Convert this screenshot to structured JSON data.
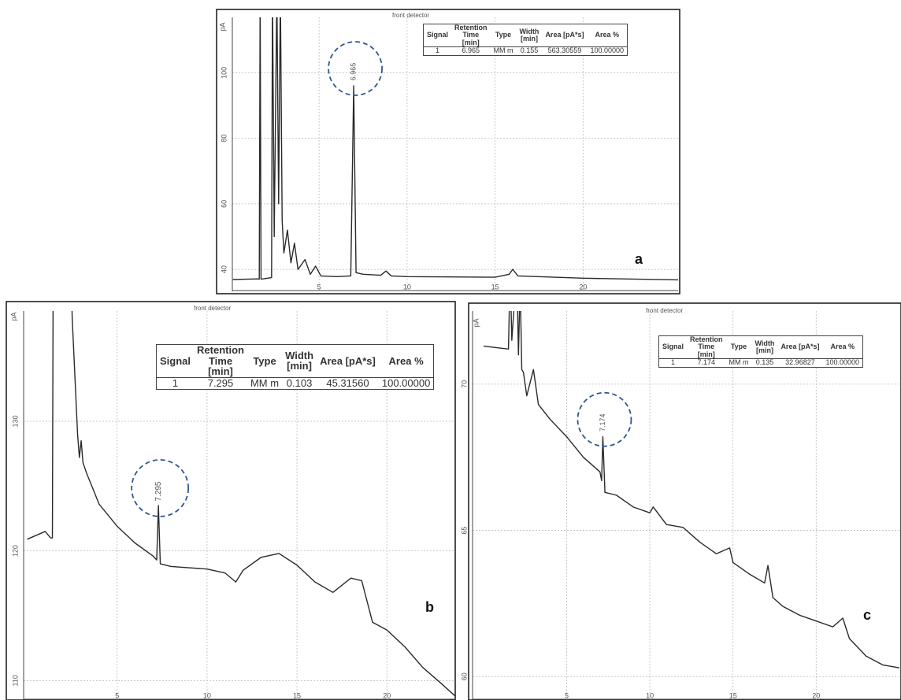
{
  "chart_data": [
    {
      "type": "line",
      "detector_label": "front detector",
      "y_axis_label": "pA",
      "panel_label": "a",
      "peak_label": "6.965",
      "xlim": [
        0.07,
        25.4
      ],
      "ylim": [
        33.3,
        116.9
      ],
      "xticks": [
        5,
        10,
        15,
        20
      ],
      "yticks": [
        40,
        60,
        80,
        100
      ],
      "grid": true,
      "x": [
        0.1,
        1.5,
        1.6,
        1.65,
        1.7,
        2.3,
        2.35,
        2.45,
        2.6,
        2.7,
        2.8,
        2.9,
        3.0,
        3.2,
        3.4,
        3.6,
        3.8,
        4.2,
        4.5,
        4.8,
        5.1,
        6.0,
        6.8,
        6.965,
        7.1,
        7.5,
        8.5,
        8.8,
        9.1,
        10,
        15,
        15.8,
        16.0,
        16.3,
        20,
        25.4
      ],
      "series": [
        {
          "color": "#2a2a2a",
          "values": [
            36.9,
            37.1,
            37,
            125,
            37,
            37.5,
            125,
            50,
            125,
            60,
            125,
            55,
            45,
            52,
            42,
            48,
            40,
            43,
            38.5,
            41,
            38,
            37.8,
            38,
            96,
            39,
            38.5,
            38.2,
            39.5,
            38,
            37.8,
            37.6,
            38.5,
            40,
            38,
            37.3,
            36.8
          ]
        }
      ],
      "table": {
        "header": [
          [
            "Signal"
          ],
          [
            "Retention",
            "Time",
            "[min]"
          ],
          [
            "Type"
          ],
          [
            "Width",
            "[min]"
          ],
          [
            "Area [pA*s]"
          ],
          [
            "Area %"
          ]
        ],
        "rows": [
          [
            "1",
            "6.965",
            "MM m",
            "0.155",
            "563.30559",
            "100.00000"
          ]
        ]
      }
    },
    {
      "type": "line",
      "detector_label": "front detector",
      "y_axis_label": "pA",
      "panel_label": "b",
      "peak_label": "7.295",
      "xlim": [
        -0.2,
        23.8
      ],
      "ylim": [
        108.5,
        138.5
      ],
      "xticks": [
        5,
        10,
        15,
        20
      ],
      "yticks": [
        110,
        120,
        130
      ],
      "grid": true,
      "x": [
        0,
        1.0,
        1.3,
        1.4,
        1.45,
        2.4,
        2.5,
        2.8,
        2.9,
        3.0,
        3.1,
        3.3,
        4,
        5,
        6,
        7,
        7.2,
        7.295,
        7.4,
        8,
        9,
        10,
        11,
        11.6,
        12,
        13,
        14,
        15,
        16,
        17,
        18,
        18.6,
        19.2,
        20,
        21,
        22,
        23,
        23.8
      ],
      "series": [
        {
          "color": "#2a2a2a",
          "values": [
            120.9,
            121.5,
            121.0,
            121.0,
            145,
            145,
            138,
            129,
            127.2,
            128.5,
            126.8,
            126,
            123.6,
            121.9,
            120.6,
            119.6,
            119.3,
            123.5,
            119.0,
            118.8,
            118.7,
            118.6,
            118.3,
            117.6,
            118.5,
            119.5,
            119.8,
            118.9,
            117.6,
            116.8,
            117.9,
            117.7,
            114.5,
            113.9,
            112.6,
            111,
            109.8,
            108.8
          ]
        }
      ],
      "table": {
        "header": [
          [
            "Signal"
          ],
          [
            "Retention",
            "Time",
            "[min]"
          ],
          [
            "Type"
          ],
          [
            "Width",
            "[min]"
          ],
          [
            "Area [pA*s]"
          ],
          [
            "Area %"
          ]
        ],
        "rows": [
          [
            "1",
            "7.295",
            "MM m",
            "0.103",
            "45.31560",
            "100.00000"
          ]
        ]
      }
    },
    {
      "type": "line",
      "detector_label": "front detector",
      "y_axis_label": "pA",
      "panel_label": "c",
      "peak_label": "7.174",
      "xlim": [
        -0.66,
        25.1
      ],
      "ylim": [
        59.2,
        72.5
      ],
      "xticks": [
        5,
        10,
        15,
        20
      ],
      "yticks": [
        60,
        65,
        70
      ],
      "grid": true,
      "x": [
        0,
        1.5,
        1.6,
        1.7,
        2.0,
        2.1,
        2.2,
        2.3,
        2.4,
        2.6,
        3.0,
        3.3,
        4,
        5,
        6,
        7,
        7.1,
        7.174,
        7.3,
        8,
        9,
        10,
        10.2,
        11,
        12,
        13,
        14,
        14.8,
        15,
        16,
        16.9,
        17.1,
        17.4,
        18,
        19,
        20,
        21,
        21.6,
        22,
        23,
        24,
        25
      ],
      "series": [
        {
          "color": "#2a2a2a",
          "values": [
            71.3,
            71.2,
            74,
            71.5,
            74,
            71,
            73.5,
            70.5,
            70.4,
            69.6,
            70.5,
            69.3,
            68.8,
            68.2,
            67.5,
            67.0,
            66.7,
            68.2,
            66.3,
            66.2,
            65.8,
            65.6,
            65.8,
            65.2,
            65.1,
            64.6,
            64.2,
            64.4,
            63.9,
            63.5,
            63.2,
            63.8,
            62.7,
            62.4,
            62.1,
            61.9,
            61.7,
            62.0,
            61.3,
            60.7,
            60.4,
            60.3
          ]
        }
      ],
      "table": {
        "header": [
          [
            "Signal"
          ],
          [
            "Retention",
            "Time",
            "[min]"
          ],
          [
            "Type"
          ],
          [
            "Width",
            "[min]"
          ],
          [
            "Area [pA*s]"
          ],
          [
            "Area %"
          ]
        ],
        "rows": [
          [
            "1",
            "7.174",
            "MM m",
            "0.135",
            "32.96827",
            "100.00000"
          ]
        ]
      }
    }
  ]
}
